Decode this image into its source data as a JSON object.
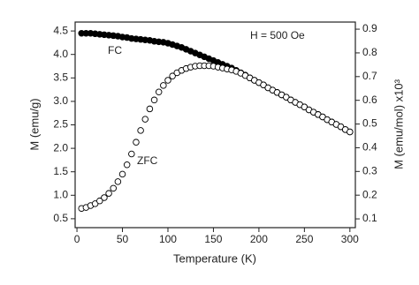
{
  "chart_data": {
    "type": "scatter",
    "xlabel": "Temperature (K)",
    "ylabel": "M (emu/g)",
    "y2label": "M (emu/mol) x10³",
    "annotations": [
      "H = 500 Oe",
      "FC",
      "ZFC"
    ],
    "x": [
      5,
      10,
      15,
      20,
      25,
      30,
      35,
      40,
      45,
      50,
      55,
      60,
      65,
      70,
      75,
      80,
      85,
      90,
      95,
      100,
      105,
      110,
      115,
      120,
      125,
      130,
      135,
      140,
      145,
      150,
      155,
      160,
      165,
      170,
      175,
      180,
      185,
      190,
      195,
      200,
      205,
      210,
      215,
      220,
      225,
      230,
      235,
      240,
      245,
      250,
      255,
      260,
      265,
      270,
      275,
      280,
      285,
      290,
      295,
      300
    ],
    "series": [
      {
        "name": "FC",
        "color": "#000000",
        "filled": true,
        "values": [
          4.45,
          4.45,
          4.45,
          4.44,
          4.43,
          4.42,
          4.41,
          4.4,
          4.39,
          4.37,
          4.36,
          4.34,
          4.33,
          4.32,
          4.31,
          4.3,
          4.28,
          4.27,
          4.26,
          4.24,
          4.21,
          4.18,
          4.15,
          4.11,
          4.07,
          4.03,
          3.99,
          3.95,
          3.91,
          3.87,
          3.83,
          3.79,
          3.75,
          3.71,
          3.66,
          3.61,
          3.56,
          3.5,
          3.45,
          3.4,
          3.35,
          3.29,
          3.24,
          3.19,
          3.14,
          3.09,
          3.03,
          2.98,
          2.93,
          2.88,
          2.82,
          2.77,
          2.72,
          2.67,
          2.61,
          2.56,
          2.51,
          2.46,
          2.4,
          2.35
        ]
      },
      {
        "name": "ZFC",
        "color": "#000000",
        "filled": false,
        "values": [
          0.72,
          0.74,
          0.78,
          0.82,
          0.88,
          0.95,
          1.04,
          1.15,
          1.29,
          1.45,
          1.65,
          1.88,
          2.13,
          2.38,
          2.62,
          2.84,
          3.03,
          3.2,
          3.34,
          3.45,
          3.54,
          3.61,
          3.66,
          3.7,
          3.73,
          3.75,
          3.76,
          3.76,
          3.76,
          3.75,
          3.73,
          3.71,
          3.69,
          3.67,
          3.64,
          3.6,
          3.55,
          3.5,
          3.45,
          3.4,
          3.35,
          3.29,
          3.24,
          3.19,
          3.14,
          3.09,
          3.03,
          2.98,
          2.93,
          2.88,
          2.82,
          2.77,
          2.72,
          2.67,
          2.61,
          2.56,
          2.51,
          2.46,
          2.4,
          2.35
        ]
      }
    ],
    "xlim": [
      -2,
      306
    ],
    "xticks": [
      0,
      50,
      100,
      150,
      200,
      250,
      300
    ],
    "ylim": [
      0.31,
      4.69
    ],
    "yticks": [
      0.5,
      {
        "value": 1,
        "label": "1.0"
      },
      1.5,
      {
        "value": 2,
        "label": "2.0"
      },
      2.5,
      {
        "value": 3,
        "label": "3.0"
      },
      3.5,
      {
        "value": 4,
        "label": "4.0"
      },
      4.5
    ],
    "y2lim": [
      0.063,
      0.93
    ],
    "y2ticks": [
      0.1,
      0.2,
      0.3,
      0.4,
      0.5,
      0.6,
      0.7,
      0.8,
      0.9
    ]
  }
}
